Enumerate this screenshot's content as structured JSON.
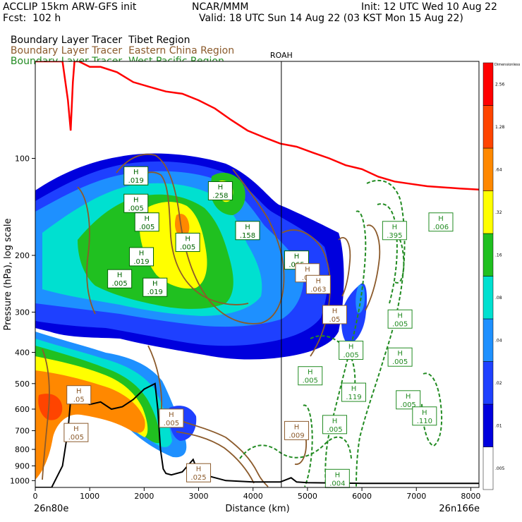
{
  "header": {
    "model": "ACCLIP 15km ARW-GFS init",
    "org": "NCAR/MMM",
    "init": "Init: 12 UTC Wed 10 Aug 22",
    "fcst": "Fcst:  102 h",
    "valid": "Valid: 18 UTC Sun 14 Aug 22 (03 KST Mon 15 Aug 22)"
  },
  "legend": [
    {
      "name": "Boundary Layer Tracer",
      "region": "Tibet Region",
      "color": "#000000"
    },
    {
      "name": "Boundary Layer Tracer",
      "region": "Eastern China Region",
      "color": "#8b5a2b"
    },
    {
      "name": "Boundary Layer Tracer",
      "region": "West Pacific Region",
      "color": "#228b22"
    }
  ],
  "chart_data": {
    "type": "heatmap",
    "xlabel": "Distance (km)",
    "ylabel": "Pressure (hPa), log scale",
    "xlim": [
      0,
      8150
    ],
    "ylim": [
      1050,
      50
    ],
    "y_scale": "log",
    "x_ticks": [
      0,
      1000,
      2000,
      3000,
      4000,
      5000,
      6000,
      7000,
      8000
    ],
    "x_tick_labels": [
      "0",
      "1000",
      "2000",
      "3000",
      "4000",
      "5000",
      "6000",
      "7000",
      "8000"
    ],
    "y_ticks": [
      100,
      200,
      300,
      400,
      500,
      600,
      700,
      800,
      900,
      1000
    ],
    "y_tick_labels": [
      "100",
      "200",
      "300",
      "400",
      "500",
      "600",
      "700",
      "800",
      "900",
      "1000"
    ],
    "left_end_label": "26n80e",
    "right_end_label": "26n166e",
    "station": {
      "label": "ROAH",
      "x": 4520
    },
    "colorbar": {
      "title": "Dimensionless",
      "levels": [
        ".005",
        ".01",
        ".02",
        ".04",
        ".08",
        ".16",
        ".32",
        ".64",
        "1.28",
        "2.56"
      ],
      "colors": [
        "#ffffff",
        "#0000dd",
        "#1e40ff",
        "#1e90ff",
        "#00e0d0",
        "#20c020",
        "#ffff00",
        "#ff8800",
        "#ff4400",
        "#ff0000"
      ]
    },
    "tropopause_line": {
      "color": "#ff0000",
      "x": [
        0,
        500,
        600,
        650,
        690,
        720,
        760,
        800,
        1000,
        1200,
        1500,
        1800,
        2100,
        2400,
        2700,
        3000,
        3300,
        3600,
        3900,
        4200,
        4500,
        4800,
        5100,
        5400,
        5700,
        6000,
        6300,
        6600,
        6900,
        7200,
        7500,
        7800,
        8150
      ],
      "y": [
        50,
        50,
        66,
        82,
        58,
        50,
        50,
        50,
        52,
        52,
        54,
        58,
        60,
        62,
        63,
        66,
        70,
        76,
        82,
        86,
        90,
        92,
        96,
        100,
        105,
        108,
        114,
        118,
        120,
        122,
        123,
        124,
        125
      ]
    },
    "terrain_line": {
      "color": "#000000",
      "x": [
        0,
        300,
        500,
        600,
        650,
        700,
        750,
        800,
        1000,
        1200,
        1400,
        1600,
        1800,
        2000,
        2200,
        2250,
        2300,
        2350,
        2400,
        2500,
        2700,
        2900,
        3000,
        3500,
        4000,
        4500,
        4700,
        4800,
        5000,
        6000,
        7000,
        8150
      ],
      "y": [
        1050,
        1050,
        900,
        700,
        560,
        530,
        550,
        560,
        580,
        570,
        600,
        590,
        560,
        520,
        500,
        600,
        800,
        920,
        950,
        960,
        940,
        860,
        950,
        1000,
        1010,
        1010,
        980,
        1010,
        1015,
        1020,
        1020,
        1020
      ]
    },
    "labels": [
      {
        "text": ".019",
        "x": 1850,
        "y": 115,
        "series": "Tibet Region"
      },
      {
        "text": ".005",
        "x": 1850,
        "y": 140,
        "series": "Tibet Region"
      },
      {
        "text": ".005",
        "x": 2050,
        "y": 160,
        "series": "Tibet Region"
      },
      {
        "text": ".005",
        "x": 2800,
        "y": 185,
        "series": "Tibet Region"
      },
      {
        "text": ".019",
        "x": 1950,
        "y": 205,
        "series": "Tibet Region"
      },
      {
        "text": ".005",
        "x": 1550,
        "y": 240,
        "series": "Tibet Region"
      },
      {
        "text": ".019",
        "x": 2200,
        "y": 255,
        "series": "Tibet Region"
      },
      {
        "text": ".258",
        "x": 3400,
        "y": 128,
        "series": "Tibet Region"
      },
      {
        "text": ".158",
        "x": 3900,
        "y": 170,
        "series": "Tibet Region"
      },
      {
        "text": ".065",
        "x": 4800,
        "y": 210,
        "series": "Tibet Region"
      },
      {
        "text": ".05",
        "x": 5000,
        "y": 230,
        "series": "Eastern China Region"
      },
      {
        "text": ".063",
        "x": 5200,
        "y": 250,
        "series": "Eastern China Region"
      },
      {
        "text": ".05",
        "x": 5500,
        "y": 310,
        "series": "Eastern China Region"
      },
      {
        "text": ".005",
        "x": 2500,
        "y": 650,
        "series": "Eastern China Region"
      },
      {
        "text": ".005",
        "x": 750,
        "y": 720,
        "series": "Eastern China Region"
      },
      {
        "text": ".05",
        "x": 800,
        "y": 550,
        "series": "Eastern China Region"
      },
      {
        "text": ".009",
        "x": 4800,
        "y": 710,
        "series": "Eastern China Region"
      },
      {
        "text": ".025",
        "x": 3000,
        "y": 960,
        "series": "Eastern China Region"
      },
      {
        "text": ".395",
        "x": 6600,
        "y": 170,
        "series": "West Pacific Region"
      },
      {
        "text": ".006",
        "x": 7450,
        "y": 160,
        "series": "West Pacific Region"
      },
      {
        "text": ".005",
        "x": 6700,
        "y": 320,
        "series": "West Pacific Region"
      },
      {
        "text": ".005",
        "x": 5800,
        "y": 400,
        "series": "West Pacific Region"
      },
      {
        "text": ".005",
        "x": 6700,
        "y": 420,
        "series": "West Pacific Region"
      },
      {
        "text": ".005",
        "x": 5050,
        "y": 480,
        "series": "West Pacific Region"
      },
      {
        "text": ".119",
        "x": 5850,
        "y": 540,
        "series": "West Pacific Region"
      },
      {
        "text": ".005",
        "x": 6850,
        "y": 570,
        "series": "West Pacific Region"
      },
      {
        "text": ".110",
        "x": 7150,
        "y": 640,
        "series": "West Pacific Region"
      },
      {
        "text": ".005",
        "x": 5500,
        "y": 680,
        "series": "West Pacific Region"
      },
      {
        "text": ".004",
        "x": 5550,
        "y": 1000,
        "series": "West Pacific Region"
      }
    ]
  }
}
